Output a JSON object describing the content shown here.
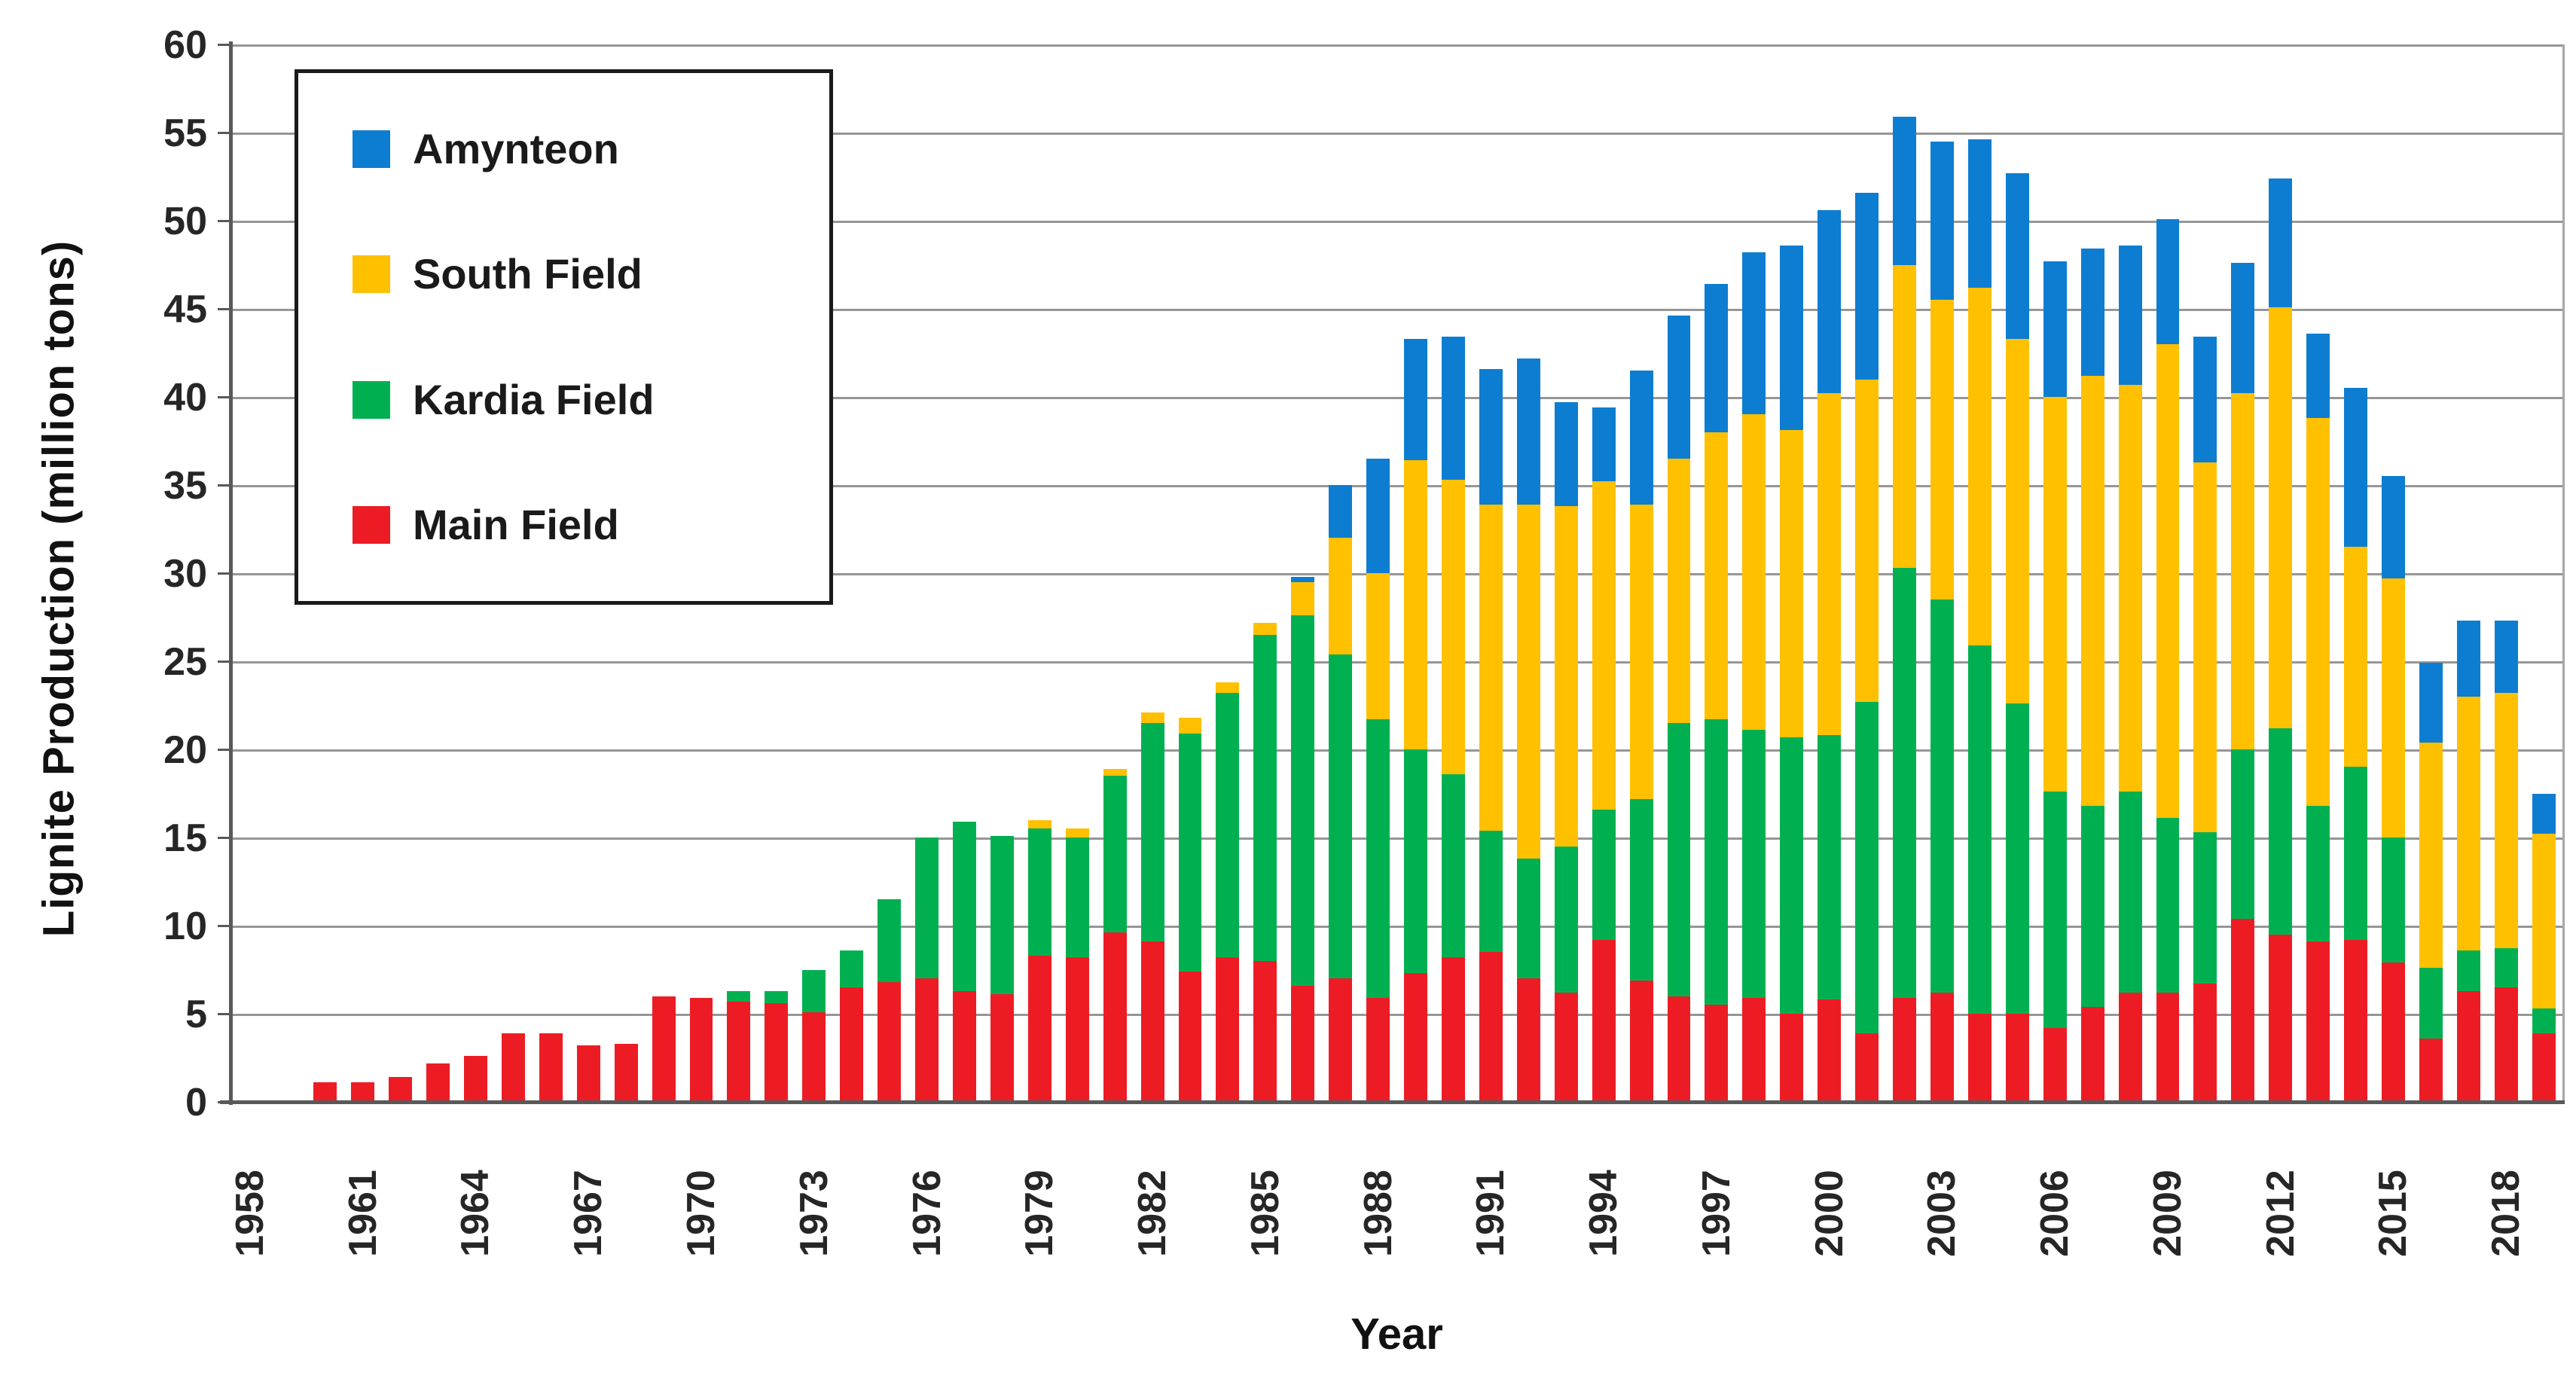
{
  "chart_data": {
    "type": "bar",
    "stacked": true,
    "title": "",
    "xlabel": "Year",
    "ylabel": "Lignite Production (million tons)",
    "ylim": [
      0,
      60
    ],
    "ytick_step": 5,
    "grid": true,
    "legend_position": "top-left-inside",
    "legend_order": [
      "Amynteon",
      "South Field",
      "Kardia Field",
      "Main Field"
    ],
    "categories": [
      1958,
      1959,
      1960,
      1961,
      1962,
      1963,
      1964,
      1965,
      1966,
      1967,
      1968,
      1969,
      1970,
      1971,
      1972,
      1973,
      1974,
      1975,
      1976,
      1977,
      1978,
      1979,
      1980,
      1981,
      1982,
      1983,
      1984,
      1985,
      1986,
      1987,
      1988,
      1989,
      1990,
      1991,
      1992,
      1993,
      1994,
      1995,
      1996,
      1997,
      1998,
      1999,
      2000,
      2001,
      2002,
      2003,
      2004,
      2005,
      2006,
      2007,
      2008,
      2009,
      2010,
      2011,
      2012,
      2013,
      2014,
      2015,
      2016,
      2017,
      2018,
      2019
    ],
    "xtick_labels": [
      "1958",
      "1961",
      "1964",
      "1967",
      "1970",
      "1973",
      "1976",
      "1979",
      "1982",
      "1985",
      "1988",
      "1991",
      "1994",
      "1997",
      "2000",
      "2003",
      "2006",
      "2009",
      "2012",
      "2015",
      "2018"
    ],
    "series": [
      {
        "name": "Main Field",
        "color": "#ed1c24",
        "values": [
          0,
          0,
          1.1,
          1.1,
          1.4,
          2.2,
          2.6,
          3.9,
          3.9,
          3.2,
          3.3,
          6.0,
          5.9,
          5.7,
          5.6,
          5.1,
          6.5,
          6.8,
          7.0,
          6.3,
          6.1,
          8.3,
          8.2,
          9.6,
          9.1,
          7.4,
          8.2,
          8.0,
          6.6,
          7.0,
          5.9,
          7.3,
          8.2,
          8.5,
          7.0,
          6.2,
          9.2,
          6.9,
          6.0,
          5.5,
          5.9,
          5.0,
          5.8,
          3.9,
          5.9,
          6.2,
          5.0,
          5.0,
          4.2,
          5.4,
          6.2,
          6.2,
          6.7,
          10.4,
          9.5,
          9.1,
          9.2,
          7.9,
          3.6,
          6.3,
          6.5,
          3.9
        ]
      },
      {
        "name": "Kardia Field",
        "color": "#00b050",
        "values": [
          0,
          0,
          0,
          0,
          0,
          0,
          0,
          0,
          0,
          0,
          0,
          0,
          0,
          0.6,
          0.7,
          2.4,
          2.1,
          4.7,
          8.0,
          9.6,
          9.0,
          7.2,
          6.8,
          8.9,
          12.4,
          13.5,
          15.0,
          18.5,
          21.0,
          18.4,
          15.8,
          12.7,
          10.4,
          6.9,
          6.8,
          8.3,
          7.4,
          10.3,
          15.5,
          16.2,
          15.2,
          15.7,
          15.0,
          18.8,
          24.4,
          22.3,
          20.9,
          17.6,
          13.4,
          11.4,
          11.4,
          9.9,
          8.6,
          9.6,
          11.7,
          7.7,
          9.8,
          7.1,
          4.0,
          2.3,
          2.2,
          1.4
        ]
      },
      {
        "name": "South Field",
        "color": "#ffc000",
        "values": [
          0,
          0,
          0,
          0,
          0,
          0,
          0,
          0,
          0,
          0,
          0,
          0,
          0,
          0,
          0,
          0,
          0,
          0,
          0,
          0,
          0,
          0.5,
          0.5,
          0.4,
          0.6,
          0.9,
          0.6,
          0.7,
          1.9,
          6.6,
          8.3,
          16.4,
          16.7,
          18.5,
          20.1,
          19.3,
          18.6,
          16.7,
          15.0,
          16.3,
          17.9,
          17.4,
          19.4,
          18.3,
          17.2,
          17.0,
          20.3,
          20.7,
          22.4,
          24.4,
          23.1,
          26.9,
          21.0,
          20.2,
          23.9,
          22.0,
          12.5,
          14.7,
          12.8,
          14.4,
          14.5,
          9.9
        ]
      },
      {
        "name": "Amynteon",
        "color": "#0d7dd1",
        "values": [
          0,
          0,
          0,
          0,
          0,
          0,
          0,
          0,
          0,
          0,
          0,
          0,
          0,
          0,
          0,
          0,
          0,
          0,
          0,
          0,
          0,
          0,
          0,
          0,
          0,
          0,
          0,
          0,
          0.3,
          3.0,
          6.5,
          6.9,
          8.1,
          7.7,
          8.3,
          5.9,
          4.2,
          7.6,
          8.1,
          8.4,
          9.2,
          10.5,
          10.4,
          10.6,
          8.4,
          9.0,
          8.4,
          9.4,
          7.7,
          7.2,
          7.9,
          7.1,
          7.1,
          7.4,
          7.3,
          4.8,
          9.0,
          5.8,
          4.5,
          4.3,
          4.1,
          2.3
        ]
      }
    ]
  }
}
